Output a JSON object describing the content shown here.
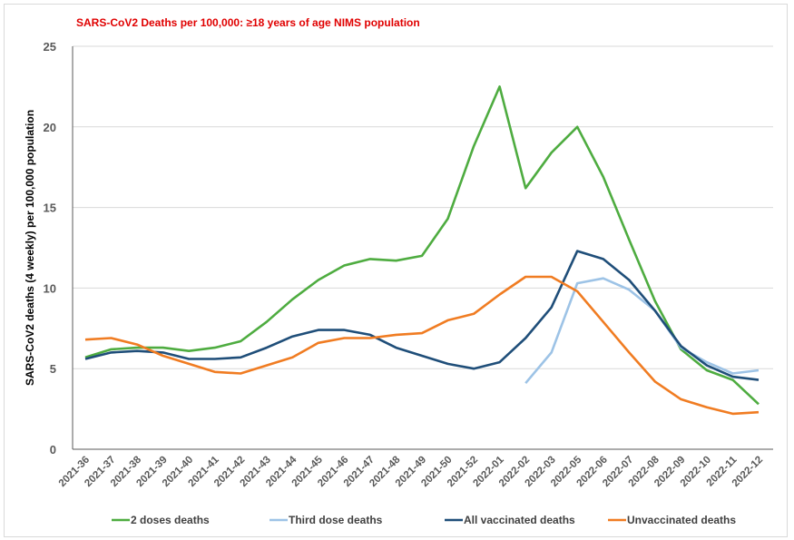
{
  "chart_data": {
    "type": "line",
    "title": "SARS-CoV2 Deaths per 100,000:  ≥18  years of age NIMS population",
    "xlabel": "",
    "ylabel": "SARS-CoV2 deaths (4 weekly) per 100,000  population",
    "ylim": [
      0,
      25
    ],
    "yticks": [
      0,
      5,
      10,
      15,
      20,
      25
    ],
    "grid": true,
    "legend_position": "bottom",
    "categories": [
      "2021-36",
      "2021-37",
      "2021-38",
      "2021-39",
      "2021-40",
      "2021-41",
      "2021-42",
      "2021-43",
      "2021-44",
      "2021-45",
      "2021-46",
      "2021-47",
      "2021-48",
      "2021-49",
      "2021-50",
      "2021-52",
      "2022-01",
      "2022-02",
      "2022-03",
      "2022-05",
      "2022-06",
      "2022-07",
      "2022-08",
      "2022-09",
      "2022-10",
      "2022-11",
      "2022-12"
    ],
    "series": [
      {
        "name": "2 doses deaths",
        "color": "#4eac40",
        "values": [
          5.7,
          6.2,
          6.3,
          6.3,
          6.1,
          6.3,
          6.7,
          7.9,
          9.3,
          10.5,
          11.4,
          11.8,
          11.7,
          12.0,
          14.3,
          18.8,
          22.5,
          16.2,
          18.4,
          20.0,
          16.9,
          13.0,
          9.2,
          6.2,
          4.9,
          4.3,
          2.8
        ]
      },
      {
        "name": "Third dose deaths",
        "color": "#9dc3e6",
        "values": [
          null,
          null,
          null,
          null,
          null,
          null,
          null,
          null,
          null,
          null,
          null,
          null,
          null,
          null,
          null,
          null,
          null,
          4.1,
          6.0,
          10.3,
          10.6,
          9.9,
          8.6,
          6.3,
          5.4,
          4.7,
          4.9
        ]
      },
      {
        "name": "All vaccinated deaths",
        "color": "#1f4e79",
        "values": [
          5.6,
          6.0,
          6.1,
          6.0,
          5.6,
          5.6,
          5.7,
          6.3,
          7.0,
          7.4,
          7.4,
          7.1,
          6.3,
          5.8,
          5.3,
          5.0,
          5.4,
          6.9,
          8.8,
          12.3,
          11.8,
          10.5,
          8.6,
          6.4,
          5.2,
          4.5,
          4.3
        ]
      },
      {
        "name": "Unvaccinated deaths",
        "color": "#f07c22",
        "values": [
          6.8,
          6.9,
          6.5,
          5.8,
          5.3,
          4.8,
          4.7,
          5.2,
          5.7,
          6.6,
          6.9,
          6.9,
          7.1,
          7.2,
          8.0,
          8.4,
          9.6,
          10.7,
          10.7,
          9.8,
          7.9,
          6.0,
          4.2,
          3.1,
          2.6,
          2.2,
          2.3
        ]
      }
    ]
  }
}
